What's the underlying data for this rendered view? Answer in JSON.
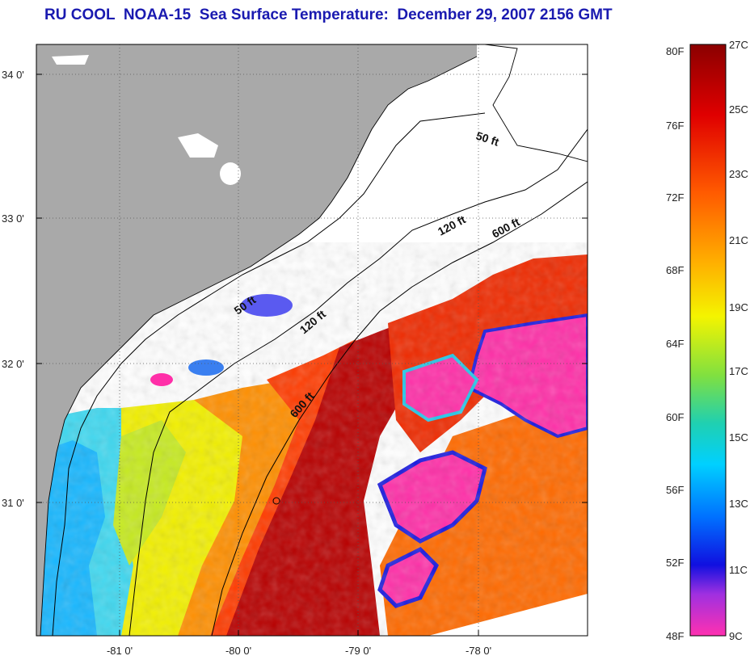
{
  "title": "RU COOL  NOAA-15  Sea Surface Temperature:  December 29, 2007 2156 GMT",
  "map": {
    "lat_ticks": [
      "34 0'",
      "33 0'",
      "32 0'",
      "31 0'"
    ],
    "lon_ticks": [
      "-81 0'",
      "-80 0'",
      "-79 0'",
      "-78 0'"
    ],
    "contour_labels": [
      "50 ft",
      "120 ft",
      "600 ft",
      "50 ft",
      "120 ft",
      "600 ft"
    ],
    "colors": {
      "land": "#a9a9a9",
      "cloud": "#ffffff",
      "gulf_stream": "#b80000",
      "warm": "#ff3b00",
      "cool": "#00c8ff",
      "cold": "#ff2fa8"
    }
  },
  "colorbar": {
    "fahrenheit_labels": [
      "80F",
      "76F",
      "72F",
      "68F",
      "64F",
      "60F",
      "56F",
      "52F",
      "48F"
    ],
    "celsius_labels": [
      "27C",
      "25C",
      "23C",
      "21C",
      "19C",
      "17C",
      "15C",
      "13C",
      "11C",
      "9C"
    ]
  }
}
